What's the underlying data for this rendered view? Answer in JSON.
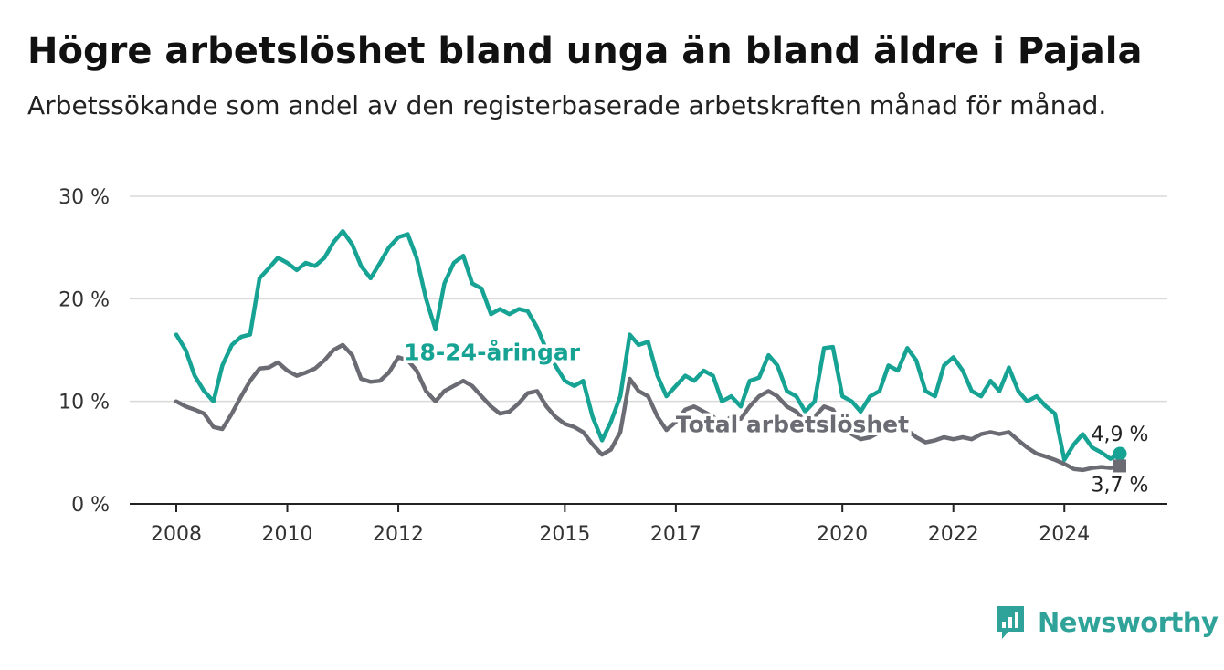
{
  "header": {
    "title": "Högre arbetslöshet bland unga än bland äldre i Pajala",
    "subtitle": "Arbetssökande som andel av den registerbaserade arbetskraften månad för månad."
  },
  "brand": {
    "name": "Newsworthy",
    "icon": "newsworthy-logo-icon",
    "color": "#2fa39a"
  },
  "chart_data": {
    "type": "line",
    "title": "Högre arbetslöshet bland unga än bland äldre i Pajala",
    "subtitle": "Arbetssökande som andel av den registerbaserade arbetskraften månad för månad.",
    "xlabel": "",
    "ylabel": "",
    "x_range": [
      2008,
      2025
    ],
    "ylim": [
      0,
      30
    ],
    "yticks": [
      0,
      10,
      20,
      30
    ],
    "ytick_labels": [
      "0 %",
      "10 %",
      "20 %",
      "30 %"
    ],
    "xticks": [
      2008,
      2010,
      2012,
      2015,
      2017,
      2020,
      2022,
      2024
    ],
    "xtick_labels": [
      "2008",
      "2010",
      "2012",
      "2015",
      "2017",
      "2020",
      "2022",
      "2024"
    ],
    "grid": true,
    "series": [
      {
        "name": "18-24-åringar",
        "color": "#16a394",
        "end_label": "4,9 %",
        "points": [
          [
            2008.0,
            16.5
          ],
          [
            2008.17,
            15.0
          ],
          [
            2008.33,
            12.5
          ],
          [
            2008.5,
            11.0
          ],
          [
            2008.67,
            10.0
          ],
          [
            2008.83,
            13.5
          ],
          [
            2009.0,
            15.5
          ],
          [
            2009.17,
            16.3
          ],
          [
            2009.33,
            16.5
          ],
          [
            2009.5,
            22.0
          ],
          [
            2009.67,
            23.0
          ],
          [
            2009.83,
            24.0
          ],
          [
            2010.0,
            23.5
          ],
          [
            2010.17,
            22.8
          ],
          [
            2010.33,
            23.5
          ],
          [
            2010.5,
            23.2
          ],
          [
            2010.67,
            24.0
          ],
          [
            2010.83,
            25.5
          ],
          [
            2011.0,
            26.6
          ],
          [
            2011.17,
            25.3
          ],
          [
            2011.33,
            23.2
          ],
          [
            2011.5,
            22.0
          ],
          [
            2011.67,
            23.5
          ],
          [
            2011.83,
            25.0
          ],
          [
            2012.0,
            26.0
          ],
          [
            2012.17,
            26.3
          ],
          [
            2012.33,
            24.0
          ],
          [
            2012.5,
            20.0
          ],
          [
            2012.67,
            17.0
          ],
          [
            2012.83,
            21.5
          ],
          [
            2013.0,
            23.5
          ],
          [
            2013.17,
            24.2
          ],
          [
            2013.33,
            21.5
          ],
          [
            2013.5,
            21.0
          ],
          [
            2013.67,
            18.5
          ],
          [
            2013.83,
            19.0
          ],
          [
            2014.0,
            18.5
          ],
          [
            2014.17,
            19.0
          ],
          [
            2014.33,
            18.8
          ],
          [
            2014.5,
            17.2
          ],
          [
            2014.67,
            15.0
          ],
          [
            2014.83,
            13.5
          ],
          [
            2015.0,
            12.0
          ],
          [
            2015.17,
            11.5
          ],
          [
            2015.33,
            12.0
          ],
          [
            2015.5,
            8.5
          ],
          [
            2015.67,
            6.2
          ],
          [
            2015.83,
            8.0
          ],
          [
            2016.0,
            10.5
          ],
          [
            2016.17,
            16.5
          ],
          [
            2016.33,
            15.5
          ],
          [
            2016.5,
            15.8
          ],
          [
            2016.67,
            12.5
          ],
          [
            2016.83,
            10.5
          ],
          [
            2017.0,
            11.5
          ],
          [
            2017.17,
            12.5
          ],
          [
            2017.33,
            12.0
          ],
          [
            2017.5,
            13.0
          ],
          [
            2017.67,
            12.5
          ],
          [
            2017.83,
            10.0
          ],
          [
            2018.0,
            10.5
          ],
          [
            2018.17,
            9.5
          ],
          [
            2018.33,
            12.0
          ],
          [
            2018.5,
            12.3
          ],
          [
            2018.67,
            14.5
          ],
          [
            2018.83,
            13.5
          ],
          [
            2019.0,
            11.0
          ],
          [
            2019.17,
            10.5
          ],
          [
            2019.33,
            9.0
          ],
          [
            2019.5,
            10.0
          ],
          [
            2019.67,
            15.2
          ],
          [
            2019.83,
            15.3
          ],
          [
            2020.0,
            10.5
          ],
          [
            2020.17,
            10.0
          ],
          [
            2020.33,
            9.0
          ],
          [
            2020.5,
            10.5
          ],
          [
            2020.67,
            11.0
          ],
          [
            2020.83,
            13.5
          ],
          [
            2021.0,
            13.0
          ],
          [
            2021.17,
            15.2
          ],
          [
            2021.33,
            14.0
          ],
          [
            2021.5,
            11.0
          ],
          [
            2021.67,
            10.5
          ],
          [
            2021.83,
            13.5
          ],
          [
            2022.0,
            14.3
          ],
          [
            2022.17,
            13.0
          ],
          [
            2022.33,
            11.0
          ],
          [
            2022.5,
            10.5
          ],
          [
            2022.67,
            12.0
          ],
          [
            2022.83,
            11.0
          ],
          [
            2023.0,
            13.3
          ],
          [
            2023.17,
            11.0
          ],
          [
            2023.33,
            10.0
          ],
          [
            2023.5,
            10.5
          ],
          [
            2023.67,
            9.5
          ],
          [
            2023.83,
            8.8
          ],
          [
            2024.0,
            4.3
          ],
          [
            2024.17,
            5.8
          ],
          [
            2024.33,
            6.8
          ],
          [
            2024.5,
            5.5
          ],
          [
            2024.67,
            5.0
          ],
          [
            2024.83,
            4.4
          ],
          [
            2025.0,
            4.9
          ]
        ]
      },
      {
        "name": "Total arbetslöshet",
        "color": "#6b6b73",
        "end_label": "3,7 %",
        "points": [
          [
            2008.0,
            10.0
          ],
          [
            2008.17,
            9.5
          ],
          [
            2008.33,
            9.2
          ],
          [
            2008.5,
            8.8
          ],
          [
            2008.67,
            7.5
          ],
          [
            2008.83,
            7.3
          ],
          [
            2009.0,
            8.8
          ],
          [
            2009.17,
            10.5
          ],
          [
            2009.33,
            12.0
          ],
          [
            2009.5,
            13.2
          ],
          [
            2009.67,
            13.3
          ],
          [
            2009.83,
            13.8
          ],
          [
            2010.0,
            13.0
          ],
          [
            2010.17,
            12.5
          ],
          [
            2010.33,
            12.8
          ],
          [
            2010.5,
            13.2
          ],
          [
            2010.67,
            14.0
          ],
          [
            2010.83,
            15.0
          ],
          [
            2011.0,
            15.5
          ],
          [
            2011.17,
            14.5
          ],
          [
            2011.33,
            12.2
          ],
          [
            2011.5,
            11.9
          ],
          [
            2011.67,
            12.0
          ],
          [
            2011.83,
            12.8
          ],
          [
            2012.0,
            14.3
          ],
          [
            2012.17,
            14.0
          ],
          [
            2012.33,
            13.0
          ],
          [
            2012.5,
            11.0
          ],
          [
            2012.67,
            10.0
          ],
          [
            2012.83,
            11.0
          ],
          [
            2013.0,
            11.5
          ],
          [
            2013.17,
            12.0
          ],
          [
            2013.33,
            11.5
          ],
          [
            2013.5,
            10.5
          ],
          [
            2013.67,
            9.5
          ],
          [
            2013.83,
            8.8
          ],
          [
            2014.0,
            9.0
          ],
          [
            2014.17,
            9.8
          ],
          [
            2014.33,
            10.8
          ],
          [
            2014.5,
            11.0
          ],
          [
            2014.67,
            9.5
          ],
          [
            2014.83,
            8.5
          ],
          [
            2015.0,
            7.8
          ],
          [
            2015.17,
            7.5
          ],
          [
            2015.33,
            7.0
          ],
          [
            2015.5,
            5.8
          ],
          [
            2015.67,
            4.8
          ],
          [
            2015.83,
            5.3
          ],
          [
            2016.0,
            7.0
          ],
          [
            2016.17,
            12.2
          ],
          [
            2016.33,
            11.0
          ],
          [
            2016.5,
            10.5
          ],
          [
            2016.67,
            8.5
          ],
          [
            2016.83,
            7.2
          ],
          [
            2017.0,
            8.0
          ],
          [
            2017.17,
            9.2
          ],
          [
            2017.33,
            9.5
          ],
          [
            2017.5,
            9.0
          ],
          [
            2017.67,
            8.5
          ],
          [
            2017.83,
            7.8
          ],
          [
            2018.0,
            8.5
          ],
          [
            2018.17,
            8.3
          ],
          [
            2018.33,
            9.5
          ],
          [
            2018.5,
            10.5
          ],
          [
            2018.67,
            11.0
          ],
          [
            2018.83,
            10.5
          ],
          [
            2019.0,
            9.5
          ],
          [
            2019.17,
            9.0
          ],
          [
            2019.33,
            8.0
          ],
          [
            2019.5,
            8.5
          ],
          [
            2019.67,
            9.5
          ],
          [
            2019.83,
            9.2
          ],
          [
            2020.0,
            7.5
          ],
          [
            2020.17,
            6.8
          ],
          [
            2020.33,
            6.3
          ],
          [
            2020.5,
            6.5
          ],
          [
            2020.67,
            7.0
          ],
          [
            2020.83,
            7.5
          ],
          [
            2021.0,
            7.0
          ],
          [
            2021.17,
            7.2
          ],
          [
            2021.33,
            6.5
          ],
          [
            2021.5,
            6.0
          ],
          [
            2021.67,
            6.2
          ],
          [
            2021.83,
            6.5
          ],
          [
            2022.0,
            6.3
          ],
          [
            2022.17,
            6.5
          ],
          [
            2022.33,
            6.3
          ],
          [
            2022.5,
            6.8
          ],
          [
            2022.67,
            7.0
          ],
          [
            2022.83,
            6.8
          ],
          [
            2023.0,
            7.0
          ],
          [
            2023.17,
            6.2
          ],
          [
            2023.33,
            5.5
          ],
          [
            2023.5,
            4.9
          ],
          [
            2023.67,
            4.6
          ],
          [
            2023.83,
            4.3
          ],
          [
            2024.0,
            3.9
          ],
          [
            2024.17,
            3.4
          ],
          [
            2024.33,
            3.3
          ],
          [
            2024.5,
            3.5
          ],
          [
            2024.67,
            3.6
          ],
          [
            2024.83,
            3.5
          ],
          [
            2025.0,
            3.7
          ]
        ]
      }
    ]
  }
}
